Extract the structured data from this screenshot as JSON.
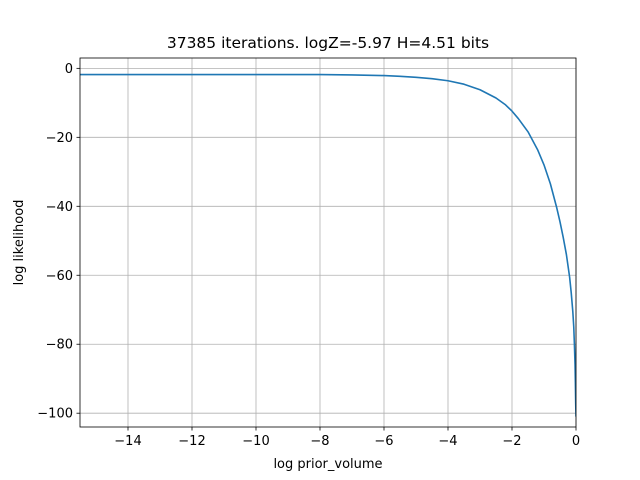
{
  "chart_data": {
    "type": "line",
    "title": "37385 iterations. logZ=-5.97 H=4.51 bits",
    "xlabel": "log prior_volume",
    "ylabel": "log likelihood",
    "xlim": [
      -15.5,
      0
    ],
    "ylim": [
      -104,
      3
    ],
    "grid": true,
    "xticks": [
      -14,
      -12,
      -10,
      -8,
      -6,
      -4,
      -2,
      0
    ],
    "xtick_labels": [
      "−14",
      "−12",
      "−10",
      "−8",
      "−6",
      "−4",
      "−2",
      "0"
    ],
    "yticks": [
      0,
      -20,
      -40,
      -60,
      -80,
      -100
    ],
    "ytick_labels": [
      "0",
      "−20",
      "−40",
      "−60",
      "−80",
      "−100"
    ],
    "series": [
      {
        "color": "#1f77b4",
        "x": [
          -15.5,
          -14,
          -12,
          -10,
          -8,
          -7,
          -6,
          -5.5,
          -5,
          -4.5,
          -4,
          -3.5,
          -3,
          -2.5,
          -2.2,
          -2,
          -1.8,
          -1.5,
          -1.2,
          -1.0,
          -0.8,
          -0.6,
          -0.5,
          -0.4,
          -0.3,
          -0.2,
          -0.15,
          -0.1,
          -0.07,
          -0.05,
          -0.03,
          -0.02,
          -0.01,
          0
        ],
        "y": [
          -1.8,
          -1.8,
          -1.8,
          -1.8,
          -1.8,
          -1.9,
          -2.1,
          -2.3,
          -2.6,
          -3.0,
          -3.6,
          -4.6,
          -6.2,
          -8.6,
          -10.6,
          -12.4,
          -14.6,
          -18.4,
          -23.6,
          -28.0,
          -33.5,
          -40.5,
          -44.5,
          -49.0,
          -54.0,
          -60.5,
          -65.0,
          -70.5,
          -75.0,
          -80.0,
          -86.0,
          -91.0,
          -97.0,
          -101.0
        ]
      }
    ]
  }
}
